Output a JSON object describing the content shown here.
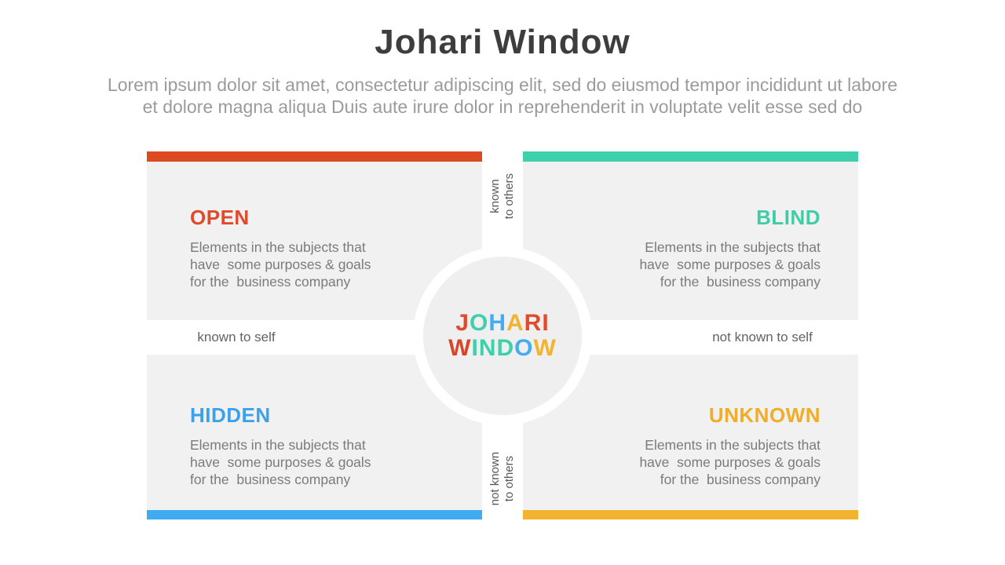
{
  "page": {
    "title": "Johari Window",
    "subtitle_line1": "Lorem ipsum dolor sit amet, consectetur adipiscing elit, sed do eiusmod tempor incididunt ut labore",
    "subtitle_line2": "et dolore magna aliqua Duis aute irure dolor in reprehenderit in voluptate velit esse sed do"
  },
  "axis": {
    "top": {
      "line1": "known",
      "line2": "to others"
    },
    "bottom": {
      "line1": "not known",
      "line2": "to others"
    },
    "left": "known to self",
    "right": "not known to self"
  },
  "quadrants": [
    {
      "key": "open",
      "label": "OPEN",
      "title_color": "#e2492b",
      "bar_color": "#dc4a22",
      "desc_lines": [
        "Elements in the subjects that",
        "have  some purposes & goals",
        "for the  business company"
      ]
    },
    {
      "key": "blind",
      "label": "BLIND",
      "title_color": "#3ecda4",
      "bar_color": "#3ecfab",
      "desc_lines": [
        "Elements in the subjects that",
        "have  some purposes & goals",
        "for the  business company"
      ]
    },
    {
      "key": "hidden",
      "label": "HIDDEN",
      "title_color": "#3ba1eb",
      "bar_color": "#41abf2",
      "desc_lines": [
        "Elements in the subjects that",
        "have  some purposes & goals",
        "for the  business company"
      ]
    },
    {
      "key": "unknown",
      "label": "UNKNOWN",
      "title_color": "#f0ad29",
      "bar_color": "#f2b331",
      "desc_lines": [
        "Elements in the subjects that",
        "have  some purposes & goals",
        "for the  business company"
      ]
    }
  ],
  "center": {
    "words": [
      {
        "word": "JOHARI",
        "letters": [
          {
            "ch": "J",
            "color": "#e14b2b"
          },
          {
            "ch": "O",
            "color": "#3ecfab"
          },
          {
            "ch": "H",
            "color": "#47abf2"
          },
          {
            "ch": "A",
            "color": "#f2b332"
          },
          {
            "ch": "R",
            "color": "#e14b2b"
          },
          {
            "ch": "I",
            "color": "#e14b2b"
          }
        ]
      },
      {
        "word": "WINDOW",
        "letters": [
          {
            "ch": "W",
            "color": "#d4472a"
          },
          {
            "ch": "I",
            "color": "#3ecfab"
          },
          {
            "ch": "N",
            "color": "#3ecfab"
          },
          {
            "ch": "D",
            "color": "#3ecfab"
          },
          {
            "ch": "O",
            "color": "#47abf2"
          },
          {
            "ch": "W",
            "color": "#f2b332"
          }
        ]
      }
    ]
  }
}
